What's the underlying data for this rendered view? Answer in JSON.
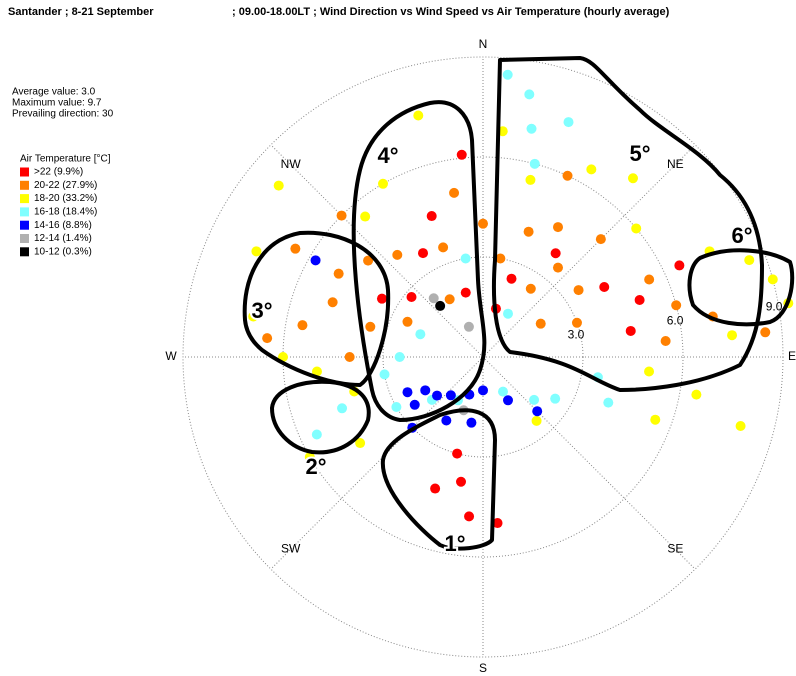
{
  "chart_data": {
    "type": "polar-scatter",
    "title": "Santander ; 8-21 September",
    "subtitle": "; 09.00-18.00LT ; Wind Direction vs Wind Speed vs Air Temperature (hourly average)",
    "stats": [
      "Average value: 3.0",
      "Maximum value: 9.7",
      "Prevailing direction: 30"
    ],
    "legend_title": "Air Temperature [°C]",
    "directions": [
      "N",
      "NE",
      "E",
      "SE",
      "S",
      "SW",
      "W",
      "NW"
    ],
    "rlim": [
      0,
      9
    ],
    "rticks": [
      {
        "value": 3,
        "label": "3.0"
      },
      {
        "value": 6,
        "label": "6.0"
      },
      {
        "value": 9,
        "label": "9.0"
      }
    ],
    "grid": true,
    "annotations": [
      "1°",
      "2°",
      "3°",
      "4°",
      "5°",
      "6°"
    ],
    "series": [
      {
        "name": ">22 (9.9%)",
        "color": "#ff0000",
        "theta": [
          354,
          340,
          330,
          310,
          300,
          20,
          35,
          60,
          70,
          195,
          190,
          185,
          175,
          200,
          15,
          345,
          65,
          80
        ],
        "r": [
          6.1,
          4.5,
          3.6,
          2.8,
          3.5,
          2.5,
          3.8,
          4.2,
          5.0,
          3.0,
          3.8,
          4.8,
          5.0,
          4.2,
          1.5,
          2.0,
          6.5,
          4.5
        ]
      },
      {
        "name": "20-22 (27.9%)",
        "color": "#ff8000",
        "theta": [
          320,
          310,
          300,
          290,
          285,
          280,
          295,
          330,
          340,
          350,
          0,
          10,
          20,
          30,
          40,
          45,
          35,
          55,
          65,
          70,
          75,
          80,
          85,
          270,
          275,
          300,
          315,
          25,
          85,
          60
        ],
        "r": [
          4.0,
          4.5,
          5.0,
          4.8,
          3.5,
          5.5,
          2.5,
          2.0,
          3.5,
          5.0,
          4.0,
          3.0,
          4.0,
          4.5,
          3.5,
          5.0,
          2.5,
          3.5,
          5.5,
          3.0,
          6.0,
          7.0,
          5.5,
          4.0,
          6.5,
          6.5,
          6.0,
          6.0,
          8.5,
          2.0
        ]
      },
      {
        "name": "18-20 (33.2%)",
        "color": "#ffff00",
        "theta": [
          320,
          330,
          5,
          15,
          30,
          40,
          50,
          65,
          70,
          75,
          80,
          85,
          95,
          100,
          105,
          270,
          265,
          280,
          295,
          255,
          240,
          235,
          310,
          345,
          110,
          140
        ],
        "r": [
          5.5,
          6.0,
          6.8,
          5.5,
          6.5,
          7.0,
          6.0,
          7.5,
          8.5,
          9.0,
          9.3,
          7.5,
          5.0,
          6.5,
          8.0,
          6.0,
          5.0,
          7.0,
          7.5,
          4.0,
          6.0,
          4.5,
          8.0,
          7.5,
          5.5,
          2.5
        ]
      },
      {
        "name": "16-18 (18.4%)",
        "color": "#80ffff",
        "theta": [
          5,
          10,
          12,
          15,
          20,
          100,
          110,
          120,
          130,
          240,
          245,
          250,
          260,
          230,
          210,
          270,
          290,
          350,
          30,
          150
        ],
        "r": [
          8.5,
          8.0,
          7.0,
          6.0,
          7.5,
          3.5,
          4.0,
          2.5,
          2.0,
          3.0,
          5.5,
          4.5,
          3.0,
          2.0,
          1.5,
          2.5,
          2.0,
          3.0,
          1.5,
          1.2
        ]
      },
      {
        "name": "14-16 (8.8%)",
        "color": "#0000ff",
        "theta": [
          220,
          230,
          235,
          240,
          200,
          210,
          225,
          245,
          180,
          150,
          135,
          300,
          190
        ],
        "r": [
          1.5,
          1.8,
          2.5,
          2.0,
          1.2,
          2.2,
          3.0,
          2.5,
          1.0,
          1.5,
          2.3,
          5.8,
          2.0
        ]
      },
      {
        "name": "12-14 (1.4%)",
        "color": "#b0b0b0",
        "theta": [
          320,
          335,
          200
        ],
        "r": [
          2.3,
          1.0,
          1.7
        ]
      },
      {
        "name": "10-12 (0.3%)",
        "color": "#000000",
        "theta": [
          320
        ],
        "r": [
          2.0
        ]
      }
    ]
  }
}
